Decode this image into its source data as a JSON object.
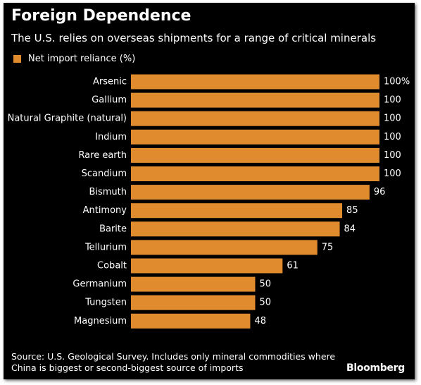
{
  "header": {
    "title": "Foreign Dependence",
    "subtitle": "The U.S. relies on overseas shipments for a range of critical minerals"
  },
  "legend": {
    "label": "Net import reliance (%)"
  },
  "chart_data": {
    "type": "bar",
    "orientation": "horizontal",
    "categories": [
      "Arsenic",
      "Gallium",
      "Natural Graphite (natural)",
      "Indium",
      "Rare earth",
      "Scandium",
      "Bismuth",
      "Antimony",
      "Barite",
      "Tellurium",
      "Cobalt",
      "Germanium",
      "Tungsten",
      "Magnesium"
    ],
    "value_labels": [
      "100%",
      "100",
      "100",
      "100",
      "100",
      "100",
      "96",
      "85",
      "84",
      "75",
      "61",
      "50",
      "50",
      "48"
    ],
    "series": [
      {
        "name": "Net import reliance (%)",
        "values": [
          100,
          100,
          100,
          100,
          100,
          100,
          96,
          85,
          84,
          75,
          61,
          50,
          50,
          48
        ],
        "color": "#e08c2e"
      }
    ],
    "xlim": [
      0,
      100
    ],
    "grid": false,
    "legend_position": "top-left"
  },
  "footer": {
    "source_lines": [
      "Source: U.S. Geological Survey. Includes only mineral commodities where",
      "China is biggest or second-biggest source of imports"
    ],
    "brand": "Bloomberg"
  },
  "colors": {
    "background": "#000000",
    "bar": "#e08c2e",
    "text": "#ffffff"
  }
}
